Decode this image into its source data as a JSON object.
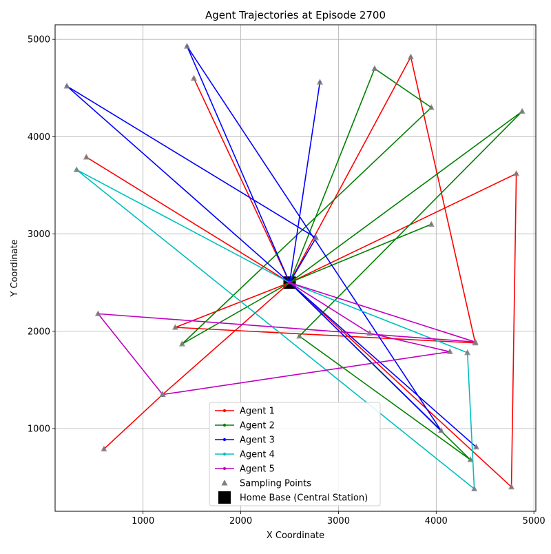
{
  "chart_data": {
    "type": "line",
    "title": "Agent Trajectories at Episode 2700",
    "xlabel": "X Coordinate",
    "ylabel": "Y Coordinate",
    "xlim": [
      100,
      5020
    ],
    "ylim": [
      150,
      5150
    ],
    "xticks": [
      1000,
      2000,
      3000,
      4000,
      5000
    ],
    "yticks": [
      1000,
      2000,
      3000,
      4000,
      5000
    ],
    "grid": true,
    "legend_position": "lower center",
    "home_base": {
      "name": "Home Base (Central Station)",
      "x": 2500,
      "y": 2500,
      "color": "#000000"
    },
    "sampling_label": "Sampling Points",
    "sampling_color": "#808080",
    "series": [
      {
        "name": "Agent 1",
        "color": "#ff0000",
        "points": [
          [
            2500,
            2500
          ],
          [
            1520,
            4600
          ],
          [
            2500,
            2500
          ],
          [
            3740,
            4820
          ],
          [
            4400,
            1880
          ],
          [
            1330,
            2040
          ],
          [
            2500,
            2500
          ],
          [
            4820,
            3620
          ],
          [
            4770,
            400
          ],
          [
            2500,
            2500
          ],
          [
            420,
            3790
          ],
          [
            2500,
            2500
          ],
          [
            1200,
            1350
          ],
          [
            600,
            790
          ],
          [
            1200,
            1350
          ],
          [
            2500,
            2500
          ]
        ]
      },
      {
        "name": "Agent 2",
        "color": "#008000",
        "points": [
          [
            2500,
            2500
          ],
          [
            3370,
            4700
          ],
          [
            3950,
            4300
          ],
          [
            1400,
            1870
          ],
          [
            2500,
            2500
          ],
          [
            4350,
            680
          ],
          [
            2600,
            1950
          ],
          [
            4880,
            4260
          ],
          [
            2500,
            2500
          ],
          [
            3950,
            3100
          ],
          [
            2500,
            2500
          ]
        ]
      },
      {
        "name": "Agent 3",
        "color": "#0000ff",
        "points": [
          [
            2500,
            2500
          ],
          [
            220,
            4520
          ],
          [
            2770,
            2960
          ],
          [
            2500,
            2500
          ],
          [
            2810,
            4560
          ],
          [
            2500,
            2500
          ],
          [
            4410,
            810
          ],
          [
            2500,
            2500
          ],
          [
            1450,
            4930
          ],
          [
            4050,
            980
          ],
          [
            2500,
            2500
          ]
        ]
      },
      {
        "name": "Agent 4",
        "color": "#00bfbf",
        "points": [
          [
            2500,
            2500
          ],
          [
            4320,
            1780
          ],
          [
            4390,
            380
          ],
          [
            320,
            3660
          ],
          [
            2500,
            2500
          ]
        ]
      },
      {
        "name": "Agent 5",
        "color": "#bf00bf",
        "points": [
          [
            2500,
            2500
          ],
          [
            4400,
            1890
          ],
          [
            540,
            2180
          ],
          [
            1200,
            1350
          ],
          [
            4140,
            1790
          ],
          [
            3320,
            1980
          ],
          [
            2500,
            2500
          ]
        ]
      }
    ]
  }
}
